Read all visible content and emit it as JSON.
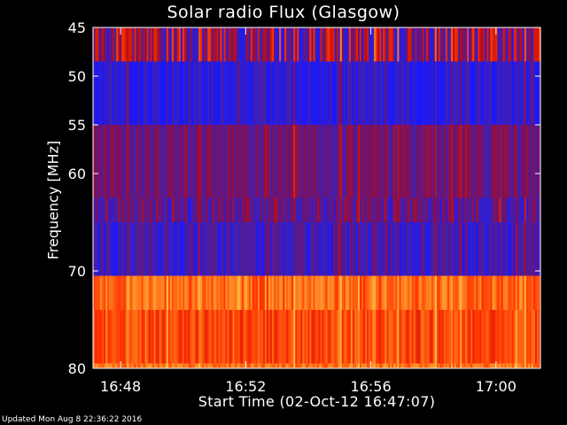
{
  "title": "Solar radio Flux (Glasgow)",
  "footer": "Updated Mon Aug  8 22:36:22 2016",
  "colors": {
    "background": "#000000",
    "foreground": "#ffffff",
    "colormap": [
      "#1818ff",
      "#4020b0",
      "#7a1060",
      "#c01010",
      "#ff3000",
      "#ff8020",
      "#ffc040"
    ]
  },
  "chart_data": {
    "type": "heatmap",
    "title": "Solar radio Flux (Glasgow)",
    "xlabel": "Start Time (02-Oct-12 16:47:07)",
    "ylabel": "Frequency [MHz]",
    "x_ticks": [
      "16:48",
      "16:52",
      "16:56",
      "17:00"
    ],
    "y_ticks": [
      "45",
      "50",
      "55",
      "60",
      "70",
      "80"
    ],
    "x_tick_minutes": [
      0.88,
      4.88,
      8.88,
      12.88
    ],
    "x_range_minutes": [
      0,
      14.3
    ],
    "y_range_mhz": [
      45,
      80
    ],
    "grid": false,
    "frequency_bands": [
      {
        "from_mhz": 45,
        "to_mhz": 48.5,
        "level": 0.35,
        "variability": 0.35
      },
      {
        "from_mhz": 48.5,
        "to_mhz": 55,
        "level": 0.08,
        "variability": 0.12
      },
      {
        "from_mhz": 55,
        "to_mhz": 62.5,
        "level": 0.28,
        "variability": 0.12
      },
      {
        "from_mhz": 62.5,
        "to_mhz": 65,
        "level": 0.25,
        "variability": 0.2
      },
      {
        "from_mhz": 65,
        "to_mhz": 70.5,
        "level": 0.15,
        "variability": 0.15
      },
      {
        "from_mhz": 70.5,
        "to_mhz": 74,
        "level": 0.78,
        "variability": 0.12
      },
      {
        "from_mhz": 74,
        "to_mhz": 79.5,
        "level": 0.7,
        "variability": 0.1
      },
      {
        "from_mhz": 79.5,
        "to_mhz": 80,
        "level": 0.8,
        "variability": 0.1
      }
    ]
  }
}
